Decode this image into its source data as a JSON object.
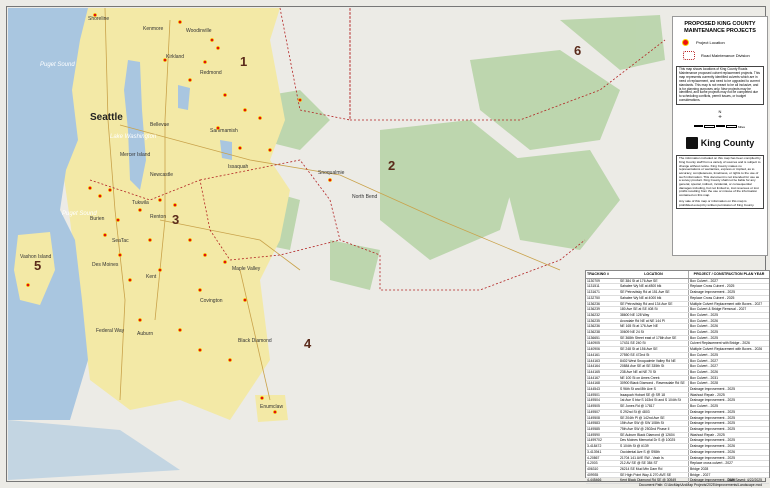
{
  "legend": {
    "title": "PROPOSED KING COUNTY MAINTENANCE PROJECTS",
    "items": [
      {
        "label": "Project Location",
        "symbol": "red-dot",
        "color": "#e11111"
      },
      {
        "label": "Road Maintenance Division",
        "symbol": "dashed-boundary",
        "color": "#b22222"
      }
    ],
    "note": "This map shows locations of King County Roads Maintenance proposed culvert replacement projects. This map represents currently identified culverts which are in need of replacement, and need to be upgraded to current standards. This map is not meant to be all inclusive, and is for planning purposes only. New projects may be identified, and some projects may not be completed due to scheduling conflicts, permit issues, or budget considerations.",
    "north_label": "N",
    "scale_ticks": [
      "0",
      "1",
      "2",
      "3",
      "4"
    ],
    "scale_unit": "Miles",
    "org_name": "King County",
    "disclaimer_1": "The information included on this map has been compiled by King County staff from a variety of sources and is subject to change without notice. King County makes no representations or warranties, express or implied, as to accuracy, completeness, timeliness, or rights to the use of such information. This document is not intended for use as a survey product. King County shall not be liable for any general, special, indirect, incidental, or consequential damages including, but not limited to, lost revenues or lost profits resulting from the use or misuse of the information contained on this map.",
    "disclaimer_2": "Any sale of this map or information on this map is prohibited except by written permission of King County."
  },
  "map": {
    "districts": [
      "1",
      "2",
      "3",
      "4",
      "5",
      "6"
    ],
    "places": [
      "Shoreline",
      "Kenmore",
      "Woodinville",
      "Kirkland",
      "Redmond",
      "Seattle",
      "Bellevue",
      "Sammamish",
      "Mercer Island",
      "Issaquah",
      "Newcastle",
      "Renton",
      "Tukwila",
      "Burien",
      "SeaTac",
      "Des Moines",
      "Kent",
      "Covington",
      "Maple Valley",
      "Federal Way",
      "Auburn",
      "Black Diamond",
      "Enumclaw",
      "Snoqualmie",
      "North Bend",
      "Vashon Island"
    ],
    "water": [
      "Puget Sound",
      "Lake Washington",
      "Puget Sound"
    ],
    "colors": {
      "urban": "#f3e9a6",
      "water": "#a9c6e0",
      "forest": "#b8d4a8",
      "land": "#ecebe6",
      "boundary": "#b22222"
    }
  },
  "table": {
    "headers": [
      "TRACKING #",
      "LOCATION",
      "PROJECT / CONSTRUCTION PLAN YEAR"
    ],
    "rows": [
      [
        "1130709",
        "SE 384 St at 176 Ave SE",
        "Box Culvert - 2027"
      ],
      [
        "1131511",
        "Sahalee Wy NE at #800 blk",
        "Replace Cross Culvert - 2025"
      ],
      [
        "1131671",
        "SE Petrovitsky Rd at 151 Ave SE",
        "Drainage Improvement - 2025"
      ],
      [
        "1132750",
        "Sahalee Wy NE at 4000 blk",
        "Replace Cross Culvert - 2025"
      ],
      [
        "1136236",
        "SE Petrovitsky Rd and 134 Ave SE",
        "Multiple Culvert Replacement with Boxes - 2027"
      ],
      [
        "1136239",
        "180 Ave SE at SE 408 St",
        "Box Culvert & Bridge Removal - 2027"
      ],
      [
        "1136232",
        "38600 NE 128 Way",
        "Box Culvert - 2025"
      ],
      [
        "1136235",
        "Avondale Rd NE at NE 144 Pl",
        "Box Culvert - 2026"
      ],
      [
        "1136236",
        "NE 165 St at 176 Ave NE",
        "Box Culvert - 2026"
      ],
      [
        "1136238",
        "30609 NE 24 St",
        "Box Culvert - 2025"
      ],
      [
        "1136651",
        "SE 368th Street east of 176th Ave SE",
        "Box Culvert - 2025"
      ],
      [
        "1140905",
        "17431 SE 240 St",
        "Culvert Replacement with Bridge - 2026"
      ],
      [
        "1140906",
        "SE 248 St at 156 Ave SE",
        "Multiple Culvert Replacement with Boxes - 2026"
      ],
      [
        "1144161",
        "27550 SE 472nd St",
        "Box Culvert - 2025"
      ],
      [
        "1144163",
        "8402 West Snoqualmie Valley Rd NE",
        "Box Culvert - 2027"
      ],
      [
        "1144164",
        "20884 Ave SE at SE 335th St",
        "Box Culvert - 2027"
      ],
      [
        "1144165",
        "238 Ave NE at NE 70 St",
        "Box Culvert - 2026"
      ],
      [
        "1144167",
        "NE 100 St on Ames Creek",
        "Box Culvert - 2031"
      ],
      [
        "1144168",
        "30900 Black Diamond - Ravensdale Rd SE",
        "Box Culvert - 2028"
      ],
      [
        "1144543",
        "S 96th St and 8th Ave S",
        "Drainage Improvement - 2025"
      ],
      [
        "1149501",
        "Issaquah Hobart SE @ SR 18",
        "Washout Repair - 2025"
      ],
      [
        "1149504",
        "1st Ave S btw S 163rd St and S 104th St",
        "Drainage Improvement - 2025"
      ],
      [
        "1149505",
        "SE Jones Rd @ 17817",
        "Box Culvert - 2025"
      ],
      [
        "1149507",
        "S 292nd St @ 4803",
        "Drainage Improvement - 2025"
      ],
      [
        "1149508",
        "SE 204th Pl @ 142nd Ave SE",
        "Drainage Improvement - 2025"
      ],
      [
        "1149583",
        "15th Ave SW @ SW 108th St",
        "Drainage Improvement - 2025"
      ],
      [
        "1149585",
        "75th Ave SW @ 2502nd Phase II",
        "Drainage Improvement - 2025"
      ],
      [
        "1149590",
        "SE Auburn Black Diamond @ 12604",
        "Washout Repair - 2025"
      ],
      [
        "11499702",
        "Des Moines Memorial Dr S @ 10025",
        "Drainage Improvement - 2025"
      ],
      [
        "3-418472",
        "S 104th St @ #139",
        "Drainage Improvement - 2026"
      ],
      [
        "3-413941",
        "Occidental Ave S @ S98th",
        "Drainage Improvement - 2026"
      ],
      [
        "4-20867",
        "21704 141 AVE SW - Vash Is",
        "Drainage Improvement - 2025"
      ],
      [
        "4-2003",
        "212 AV SE @ SE 384 ST",
        "Replace cross culvert - 2027"
      ],
      [
        "406310",
        "26214 SE Mud Mtn Dam Rd",
        "Bridge 2028"
      ],
      [
        "409935",
        "SE High Point Way & 270 AVE SE",
        "Bridge - 2027"
      ],
      [
        "4-445466",
        "Kent Black Diamond Rd SE @ 30549",
        "Drainage Improvement - 2025"
      ]
    ]
  },
  "footer": {
    "date_saved": "Date Saved: 4/22/2025",
    "document_path": "Document Path: G:\\ArcMap\\ArcMap Projects\\2025\\Improvements\\Landscape.mxd"
  }
}
